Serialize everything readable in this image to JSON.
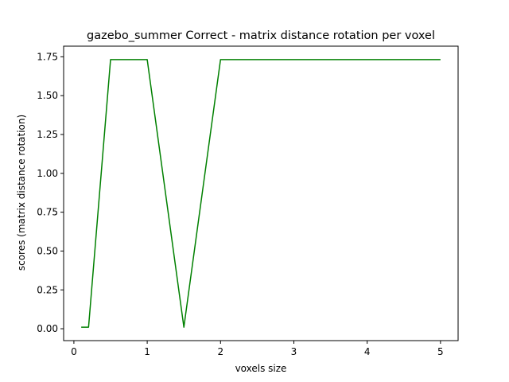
{
  "chart_data": {
    "type": "line",
    "title": "gazebo_summer Correct - matrix distance rotation per voxel",
    "xlabel": "voxels size",
    "ylabel": "scores (matrix distance rotation)",
    "xlim": [
      -0.14,
      5.24
    ],
    "ylim": [
      -0.0765,
      1.8185
    ],
    "xticks": [
      0,
      1,
      2,
      3,
      4,
      5
    ],
    "xtick_labels": [
      "0",
      "1",
      "2",
      "3",
      "4",
      "5"
    ],
    "yticks": [
      0.0,
      0.25,
      0.5,
      0.75,
      1.0,
      1.25,
      1.5,
      1.75
    ],
    "ytick_labels": [
      "0.00",
      "0.25",
      "0.50",
      "0.75",
      "1.00",
      "1.25",
      "1.50",
      "1.75"
    ],
    "grid": false,
    "colors": {
      "line": "#008000",
      "axes": "#000000",
      "background": "#ffffff"
    },
    "series": [
      {
        "x": [
          0.1,
          0.2,
          0.5,
          1.0,
          1.5,
          2.0,
          2.5,
          3.0,
          3.5,
          4.0,
          4.5,
          5.0
        ],
        "y": [
          0.01,
          0.01,
          1.732,
          1.732,
          0.01,
          1.732,
          1.732,
          1.732,
          1.732,
          1.732,
          1.732,
          1.732
        ]
      }
    ]
  }
}
